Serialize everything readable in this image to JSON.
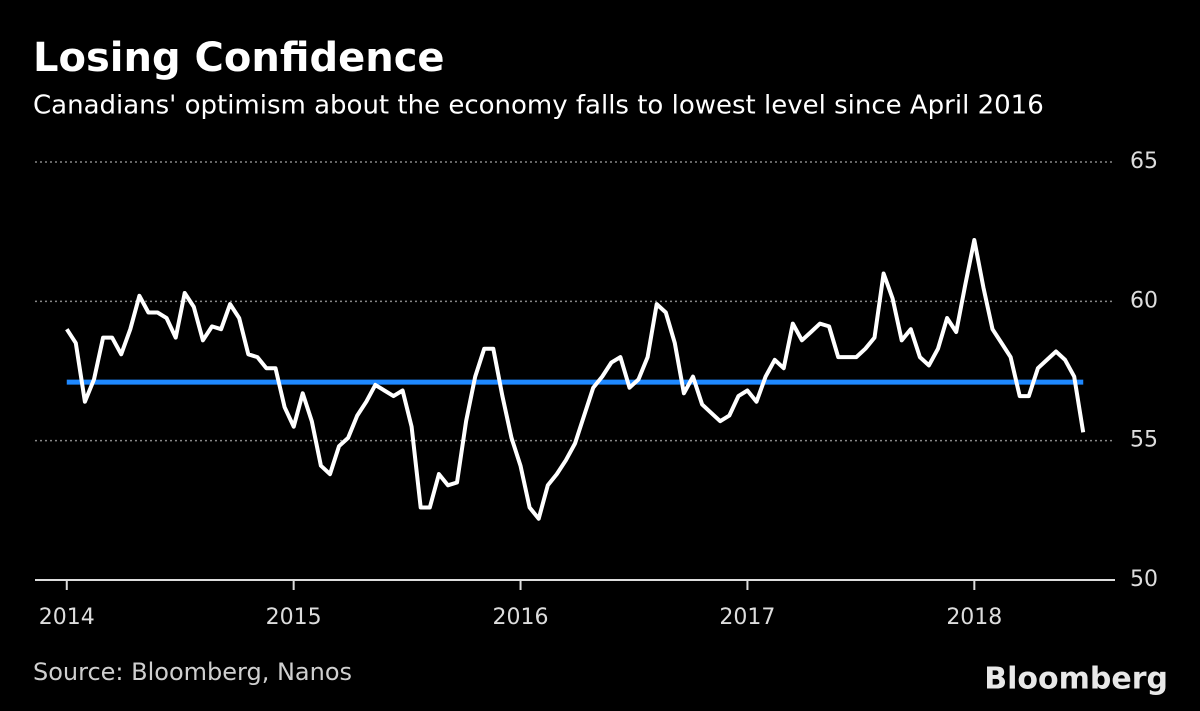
{
  "chart_data": {
    "type": "line",
    "title": "Losing Confidence",
    "subtitle": "Canadians' optimism about the economy falls to lowest level since April 2016",
    "source": "Source: Bloomberg, Nanos",
    "brand": "Bloomberg",
    "x": [
      2014,
      2014.04,
      2014.08,
      2014.12,
      2014.16,
      2014.2,
      2014.24,
      2014.28,
      2014.32,
      2014.36,
      2014.4,
      2014.44,
      2014.48,
      2014.52,
      2014.56,
      2014.6,
      2014.64,
      2014.68,
      2014.72,
      2014.76,
      2014.8,
      2014.84,
      2014.88,
      2014.92,
      2014.96,
      2015,
      2015.04,
      2015.08,
      2015.12,
      2015.16,
      2015.2,
      2015.24,
      2015.28,
      2015.32,
      2015.36,
      2015.4,
      2015.44,
      2015.48,
      2015.52,
      2015.56,
      2015.6,
      2015.64,
      2015.68,
      2015.72,
      2015.76,
      2015.8,
      2015.84,
      2015.88,
      2015.92,
      2015.96,
      2016,
      2016.04,
      2016.08,
      2016.12,
      2016.16,
      2016.2,
      2016.24,
      2016.28,
      2016.32,
      2016.36,
      2016.4,
      2016.44,
      2016.48,
      2016.52,
      2016.56,
      2016.6,
      2016.64,
      2016.68,
      2016.72,
      2016.76,
      2016.8,
      2016.84,
      2016.88,
      2016.92,
      2016.96,
      2017,
      2017.04,
      2017.08,
      2017.12,
      2017.16,
      2017.2,
      2017.24,
      2017.28,
      2017.32,
      2017.36,
      2017.4,
      2017.44,
      2017.48,
      2017.52,
      2017.56,
      2017.6,
      2017.64,
      2017.68,
      2017.72,
      2017.76,
      2017.8,
      2017.84,
      2017.88,
      2017.92,
      2017.96,
      2018,
      2018.04,
      2018.08,
      2018.12,
      2018.16,
      2018.2,
      2018.24,
      2018.28,
      2018.32,
      2018.36,
      2018.4,
      2018.44,
      2018.48
    ],
    "series": [
      {
        "color": "#ffffff",
        "values": [
          59.0,
          58.5,
          56.4,
          57.2,
          58.7,
          58.7,
          58.1,
          59.0,
          60.2,
          59.6,
          59.6,
          59.4,
          58.7,
          60.3,
          59.8,
          58.6,
          59.1,
          59.0,
          59.9,
          59.4,
          58.1,
          58.0,
          57.6,
          57.6,
          56.2,
          55.5,
          56.7,
          55.7,
          54.1,
          53.8,
          54.8,
          55.1,
          55.9,
          56.4,
          57.0,
          56.8,
          56.6,
          56.8,
          55.5,
          52.6,
          52.6,
          53.8,
          53.4,
          53.5,
          55.7,
          57.3,
          58.3,
          58.3,
          56.6,
          55.1,
          54.1,
          52.6,
          52.2,
          53.4,
          53.8,
          54.3,
          54.9,
          55.9,
          56.9,
          57.3,
          57.8,
          58.0,
          56.9,
          57.2,
          58.0,
          59.9,
          59.6,
          58.5,
          56.7,
          57.3,
          56.3,
          56.0,
          55.7,
          55.9,
          56.6,
          56.8,
          56.4,
          57.3,
          57.9,
          57.6,
          59.2,
          58.6,
          58.9,
          59.2,
          59.1,
          58.0,
          58.0,
          58.0,
          58.3,
          58.7,
          61.0,
          60.1,
          58.6,
          59.0,
          58.0,
          57.7,
          58.3,
          59.4,
          58.9,
          60.6,
          62.2,
          60.5,
          59.0,
          58.5,
          58.0,
          56.6,
          56.6,
          57.6,
          57.9,
          58.2,
          57.9,
          57.3,
          55.3
        ]
      }
    ],
    "average": {
      "color": "#1e88ff",
      "value": 57.1
    },
    "xlim": [
      2013.86,
      2018.62
    ],
    "xticks": [
      2014,
      2015,
      2016,
      2017,
      2018
    ],
    "ylim": [
      50,
      65
    ],
    "yticks": [
      50,
      55,
      60,
      65
    ],
    "grid": true
  }
}
